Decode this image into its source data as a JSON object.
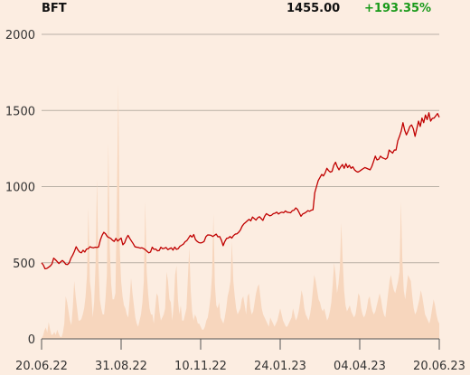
{
  "header": {
    "ticker": "BFT",
    "price": "1455.00",
    "change": "+193.35%",
    "change_color": "#1a9a1a"
  },
  "colors": {
    "background": "#fcede1",
    "price_line": "#c00000",
    "volume_fill": "#f7d6bd",
    "grid": "#b9b0a6"
  },
  "chart_data": {
    "type": "line",
    "title": "",
    "xlabel": "",
    "ylabel": "",
    "ylim": [
      0,
      2000
    ],
    "yticks": [
      0,
      500,
      1000,
      1500,
      2000
    ],
    "xticks": [
      "20.06.22",
      "31.08.22",
      "10.11.22",
      "24.01.23",
      "04.04.23",
      "20.06.23"
    ],
    "grid": "horizontal",
    "series": [
      {
        "values": [
          500,
          485,
          460,
          462,
          470,
          478,
          492,
          530,
          520,
          508,
          495,
          505,
          515,
          505,
          490,
          488,
          500,
          530,
          550,
          575,
          605,
          585,
          570,
          565,
          582,
          570,
          590,
          592,
          605,
          600,
          598,
          602,
          600,
          604,
          650,
          680,
          700,
          690,
          672,
          665,
          660,
          648,
          640,
          660,
          642,
          652,
          662,
          618,
          630,
          660,
          680,
          660,
          642,
          625,
          605,
          602,
          600,
          596,
          598,
          593,
          585,
          575,
          565,
          570,
          602,
          588,
          590,
          578,
          580,
          602,
          592,
          595,
          600,
          586,
          592,
          598,
          583,
          603,
          588,
          592,
          608,
          615,
          622,
          638,
          645,
          662,
          680,
          668,
          685,
          652,
          640,
          632,
          630,
          633,
          640,
          670,
          682,
          682,
          680,
          672,
          680,
          688,
          670,
          672,
          648,
          612,
          640,
          660,
          662,
          672,
          662,
          678,
          688,
          690,
          700,
          715,
          740,
          755,
          765,
          775,
          785,
          775,
          800,
          790,
          780,
          795,
          802,
          790,
          778,
          805,
          822,
          815,
          808,
          812,
          822,
          825,
          832,
          820,
          828,
          832,
          828,
          840,
          832,
          830,
          828,
          842,
          845,
          860,
          850,
          828,
          805,
          820,
          825,
          832,
          842,
          838,
          845,
          848,
          960,
          1000,
          1040,
          1060,
          1080,
          1070,
          1090,
          1120,
          1105,
          1095,
          1100,
          1140,
          1160,
          1130,
          1110,
          1130,
          1145,
          1120,
          1150,
          1125,
          1140,
          1120,
          1130,
          1110,
          1100,
          1095,
          1102,
          1110,
          1118,
          1125,
          1120,
          1115,
          1110,
          1132,
          1165,
          1200,
          1175,
          1180,
          1200,
          1190,
          1185,
          1180,
          1190,
          1240,
          1230,
          1220,
          1240,
          1240,
          1300,
          1330,
          1365,
          1420,
          1370,
          1340,
          1365,
          1395,
          1405,
          1380,
          1330,
          1380,
          1430,
          1395,
          1450,
          1420,
          1470,
          1440,
          1485,
          1430,
          1448,
          1450,
          1465,
          1480,
          1455
        ]
      }
    ],
    "volume": [
      5,
      20,
      55,
      75,
      40,
      110,
      60,
      25,
      30,
      45,
      25,
      60,
      35,
      15,
      10,
      40,
      100,
      280,
      240,
      180,
      120,
      90,
      210,
      380,
      280,
      200,
      120,
      120,
      130,
      160,
      200,
      280,
      420,
      860,
      380,
      300,
      140,
      240,
      480,
      1050,
      500,
      260,
      200,
      160,
      160,
      260,
      420,
      1290,
      600,
      360,
      260,
      260,
      300,
      880,
      1680,
      600,
      380,
      280,
      220,
      200,
      160,
      140,
      260,
      400,
      300,
      220,
      140,
      100,
      80,
      120,
      160,
      240,
      380,
      900,
      440,
      300,
      200,
      160,
      160,
      100,
      200,
      300,
      280,
      180,
      120,
      140,
      160,
      200,
      440,
      380,
      260,
      240,
      120,
      220,
      420,
      480,
      260,
      160,
      220,
      120,
      120,
      160,
      200,
      400,
      600,
      320,
      180,
      120,
      160,
      140,
      100,
      100,
      80,
      60,
      60,
      80,
      120,
      140,
      200,
      280,
      420,
      820,
      360,
      220,
      200,
      240,
      140,
      120,
      100,
      140,
      200,
      280,
      320,
      380,
      640,
      380,
      280,
      200,
      160,
      180,
      200,
      260,
      280,
      220,
      160,
      280,
      300,
      200,
      160,
      180,
      240,
      300,
      340,
      360,
      280,
      200,
      160,
      140,
      120,
      100,
      80,
      140,
      120,
      100,
      80,
      100,
      120,
      160,
      200,
      160,
      120,
      100,
      80,
      80,
      100,
      120,
      140,
      200,
      160,
      120,
      140,
      180,
      240,
      320,
      280,
      200,
      160,
      140,
      120,
      160,
      220,
      320,
      420,
      380,
      320,
      260,
      240,
      200,
      180,
      200,
      160,
      120,
      140,
      180,
      240,
      360,
      500,
      420,
      300,
      360,
      460,
      760,
      520,
      320,
      220,
      180,
      200,
      220,
      180,
      160,
      140,
      160,
      220,
      300,
      280,
      200,
      160,
      140,
      160,
      200,
      260,
      280,
      220,
      180,
      160,
      180,
      220,
      260,
      300,
      260,
      200,
      160,
      140,
      220,
      300,
      380,
      420,
      360,
      320,
      300,
      340,
      380,
      440,
      900,
      520,
      320,
      260,
      340,
      420,
      400,
      380,
      280,
      200,
      160,
      180,
      220,
      260,
      320,
      280,
      220,
      160,
      140,
      120,
      100,
      140,
      200,
      260,
      220,
      160,
      120,
      100
    ]
  }
}
